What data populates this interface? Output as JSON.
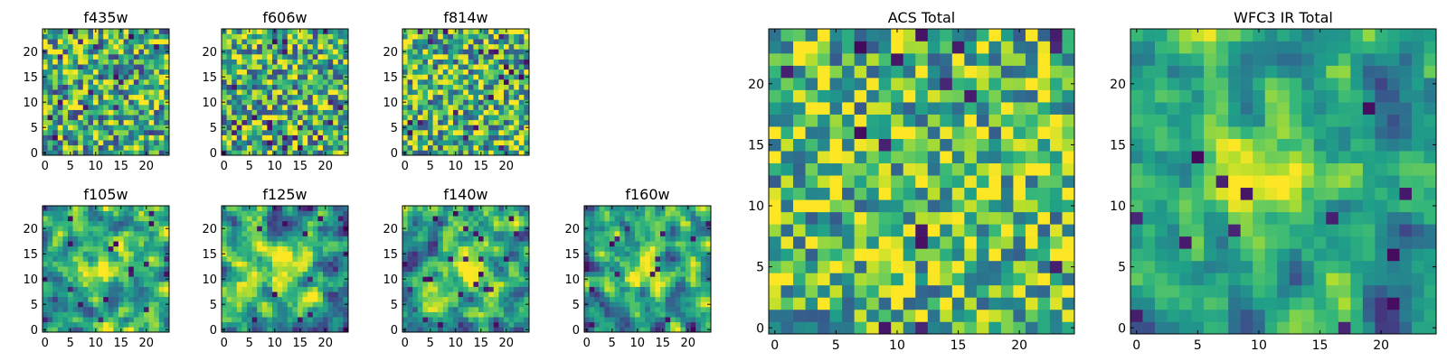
{
  "chart_data": [
    {
      "type": "heatmap",
      "title": "f435w",
      "colormap": "viridis",
      "grid_size": 25,
      "xticks": [
        0,
        5,
        10,
        15,
        20
      ],
      "yticks": [
        0,
        5,
        10,
        15,
        20
      ],
      "xlim": [
        -0.5,
        24.5
      ],
      "ylim": [
        -0.5,
        24.5
      ],
      "pattern": "noise",
      "noise_seed": 11,
      "mean": 0.62,
      "spread": 0.55,
      "blob": null,
      "dark_pixel_fraction": 0.035
    },
    {
      "type": "heatmap",
      "title": "f606w",
      "colormap": "viridis",
      "grid_size": 25,
      "xticks": [
        0,
        5,
        10,
        15,
        20
      ],
      "yticks": [
        0,
        5,
        10,
        15,
        20
      ],
      "xlim": [
        -0.5,
        24.5
      ],
      "ylim": [
        -0.5,
        24.5
      ],
      "pattern": "noise",
      "noise_seed": 23,
      "mean": 0.64,
      "spread": 0.55,
      "blob": null,
      "dark_pixel_fraction": 0.03
    },
    {
      "type": "heatmap",
      "title": "f814w",
      "colormap": "viridis",
      "grid_size": 25,
      "xticks": [
        0,
        5,
        10,
        15,
        20
      ],
      "yticks": [
        0,
        5,
        10,
        15,
        20
      ],
      "xlim": [
        -0.5,
        24.5
      ],
      "ylim": [
        -0.5,
        24.5
      ],
      "pattern": "noise",
      "noise_seed": 37,
      "mean": 0.66,
      "spread": 0.55,
      "blob": null,
      "dark_pixel_fraction": 0.035
    },
    {
      "type": "heatmap",
      "title": "f105w",
      "colormap": "viridis",
      "grid_size": 25,
      "xticks": [
        0,
        5,
        10,
        15,
        20
      ],
      "yticks": [
        0,
        5,
        10,
        15,
        20
      ],
      "xlim": [
        -0.5,
        24.5
      ],
      "ylim": [
        -0.5,
        24.5
      ],
      "pattern": "smooth",
      "noise_seed": 41,
      "mean": 0.58,
      "spread": 0.5,
      "blob": {
        "x": 12,
        "y": 13,
        "sigma": 3.5,
        "amp": 0.35
      },
      "dark_pixel_fraction": 0.02
    },
    {
      "type": "heatmap",
      "title": "f125w",
      "colormap": "viridis",
      "grid_size": 25,
      "xticks": [
        0,
        5,
        10,
        15,
        20
      ],
      "yticks": [
        0,
        5,
        10,
        15,
        20
      ],
      "xlim": [
        -0.5,
        24.5
      ],
      "ylim": [
        -0.5,
        24.5
      ],
      "pattern": "smooth",
      "noise_seed": 53,
      "mean": 0.58,
      "spread": 0.5,
      "blob": {
        "x": 12,
        "y": 12,
        "sigma": 3.5,
        "amp": 0.35
      },
      "dark_pixel_fraction": 0.02
    },
    {
      "type": "heatmap",
      "title": "f140w",
      "colormap": "viridis",
      "grid_size": 25,
      "xticks": [
        0,
        5,
        10,
        15,
        20
      ],
      "yticks": [
        0,
        5,
        10,
        15,
        20
      ],
      "xlim": [
        -0.5,
        24.5
      ],
      "ylim": [
        -0.5,
        24.5
      ],
      "pattern": "smooth",
      "noise_seed": 67,
      "mean": 0.58,
      "spread": 0.5,
      "blob": {
        "x": 12,
        "y": 13,
        "sigma": 3.5,
        "amp": 0.38
      },
      "dark_pixel_fraction": 0.025
    },
    {
      "type": "heatmap",
      "title": "f160w",
      "colormap": "viridis",
      "grid_size": 25,
      "xticks": [
        0,
        5,
        10,
        15,
        20
      ],
      "yticks": [
        0,
        5,
        10,
        15,
        20
      ],
      "xlim": [
        -0.5,
        24.5
      ],
      "ylim": [
        -0.5,
        24.5
      ],
      "pattern": "smooth",
      "noise_seed": 79,
      "mean": 0.56,
      "spread": 0.5,
      "blob": {
        "x": 11,
        "y": 12,
        "sigma": 3.5,
        "amp": 0.42
      },
      "dark_pixel_fraction": 0.03
    },
    {
      "type": "heatmap",
      "title": "ACS Total",
      "colormap": "viridis",
      "grid_size": 25,
      "xticks": [
        0,
        5,
        10,
        15,
        20
      ],
      "yticks": [
        0,
        5,
        10,
        15,
        20
      ],
      "xlim": [
        -0.5,
        24.5
      ],
      "ylim": [
        -0.5,
        24.5
      ],
      "pattern": "noise",
      "noise_seed": 97,
      "mean": 0.68,
      "spread": 0.5,
      "blob": null,
      "dark_pixel_fraction": 0.03
    },
    {
      "type": "heatmap",
      "title": "WFC3 IR Total",
      "colormap": "viridis",
      "grid_size": 25,
      "xticks": [
        0,
        5,
        10,
        15,
        20
      ],
      "yticks": [
        0,
        5,
        10,
        15,
        20
      ],
      "xlim": [
        -0.5,
        24.5
      ],
      "ylim": [
        -0.5,
        24.5
      ],
      "pattern": "smooth",
      "noise_seed": 131,
      "mean": 0.55,
      "spread": 0.38,
      "blob": {
        "x": 11.5,
        "y": 12.5,
        "sigma": 3.2,
        "amp": 0.45
      },
      "dark_pixel_fraction": 0.03
    }
  ]
}
